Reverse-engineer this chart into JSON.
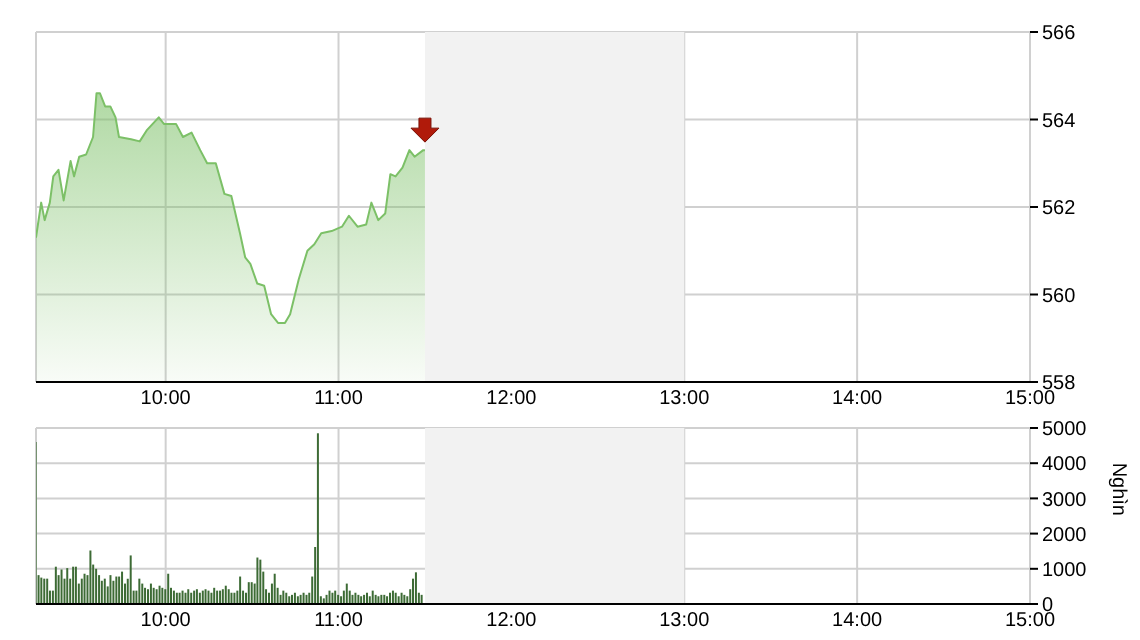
{
  "chart_data": [
    {
      "type": "area",
      "color": "#7cc067",
      "x": [
        9.25,
        9.28,
        9.3,
        9.33,
        9.35,
        9.38,
        9.41,
        9.45,
        9.47,
        9.5,
        9.54,
        9.58,
        9.6,
        9.62,
        9.65,
        9.68,
        9.71,
        9.73,
        9.8,
        9.85,
        9.89,
        9.96,
        9.99,
        10.06,
        10.1,
        10.15,
        10.2,
        10.24,
        10.29,
        10.34,
        10.38,
        10.43,
        10.46,
        10.49,
        10.53,
        10.57,
        10.61,
        10.65,
        10.69,
        10.72,
        10.77,
        10.82,
        10.86,
        10.9,
        10.96,
        11.02,
        11.06,
        11.11,
        11.16,
        11.19,
        11.23,
        11.27,
        11.3,
        11.33,
        11.37,
        11.41,
        11.44,
        11.49,
        11.5
      ],
      "values": [
        561.3,
        562.1,
        561.7,
        562.1,
        562.7,
        562.85,
        562.15,
        563.05,
        562.7,
        563.15,
        563.2,
        563.6,
        564.6,
        564.6,
        564.3,
        564.3,
        564.05,
        563.6,
        563.55,
        563.5,
        563.75,
        564.05,
        563.9,
        563.9,
        563.6,
        563.7,
        563.3,
        563.0,
        563.0,
        562.3,
        562.25,
        561.4,
        560.85,
        560.7,
        560.25,
        560.2,
        559.55,
        559.35,
        559.35,
        559.55,
        560.35,
        561.0,
        561.15,
        561.4,
        561.45,
        561.55,
        561.8,
        561.55,
        561.6,
        562.1,
        561.7,
        561.85,
        562.75,
        562.7,
        562.9,
        563.3,
        563.15,
        563.3,
        563.3
      ],
      "xlim": [
        9.25,
        15
      ],
      "xticks": [
        {
          "value": 10,
          "label": "10:00"
        },
        {
          "value": 11,
          "label": "11:00"
        },
        {
          "value": 12,
          "label": "12:00"
        },
        {
          "value": 13,
          "label": "13:00"
        },
        {
          "value": 14,
          "label": "14:00"
        },
        {
          "value": 15,
          "label": "15:00"
        }
      ],
      "ylim": [
        558,
        566
      ],
      "yticks": [
        558,
        560,
        562,
        564,
        566
      ],
      "grid": true,
      "bands": [
        {
          "axis": "x",
          "from": 11.5,
          "to": 13,
          "color": "#f2f2f2"
        }
      ]
    },
    {
      "type": "bar",
      "color": "#3d6b35",
      "ylabel": "Nghìn",
      "x": [
        9.25,
        9.267,
        9.283,
        9.3,
        9.317,
        9.333,
        9.35,
        9.367,
        9.383,
        9.4,
        9.417,
        9.433,
        9.45,
        9.467,
        9.483,
        9.5,
        9.517,
        9.533,
        9.55,
        9.567,
        9.583,
        9.6,
        9.617,
        9.633,
        9.65,
        9.667,
        9.683,
        9.7,
        9.717,
        9.733,
        9.75,
        9.767,
        9.783,
        9.8,
        9.817,
        9.833,
        9.85,
        9.867,
        9.883,
        9.9,
        9.917,
        9.933,
        9.95,
        9.967,
        9.983,
        10,
        10.017,
        10.033,
        10.05,
        10.067,
        10.083,
        10.1,
        10.117,
        10.133,
        10.15,
        10.167,
        10.183,
        10.2,
        10.217,
        10.233,
        10.25,
        10.267,
        10.283,
        10.3,
        10.317,
        10.333,
        10.35,
        10.367,
        10.383,
        10.4,
        10.417,
        10.433,
        10.45,
        10.467,
        10.483,
        10.5,
        10.517,
        10.533,
        10.55,
        10.567,
        10.583,
        10.6,
        10.617,
        10.633,
        10.65,
        10.667,
        10.683,
        10.7,
        10.717,
        10.733,
        10.75,
        10.767,
        10.783,
        10.8,
        10.817,
        10.833,
        10.85,
        10.867,
        10.883,
        10.9,
        10.917,
        10.933,
        10.95,
        10.967,
        10.983,
        11,
        11.017,
        11.033,
        11.05,
        11.067,
        11.083,
        11.1,
        11.117,
        11.133,
        11.15,
        11.167,
        11.183,
        11.2,
        11.217,
        11.233,
        11.25,
        11.267,
        11.283,
        11.3,
        11.317,
        11.333,
        11.35,
        11.367,
        11.383,
        11.4,
        11.417,
        11.433,
        11.45,
        11.467,
        11.483
      ],
      "values": [
        4600,
        820,
        750,
        720,
        720,
        380,
        380,
        1060,
        820,
        980,
        720,
        1020,
        720,
        1060,
        1060,
        580,
        720,
        860,
        820,
        1520,
        1120,
        1000,
        820,
        660,
        720,
        500,
        820,
        660,
        780,
        780,
        920,
        580,
        720,
        1380,
        380,
        380,
        720,
        580,
        460,
        420,
        580,
        460,
        420,
        520,
        460,
        420,
        860,
        460,
        380,
        320,
        320,
        380,
        320,
        420,
        320,
        380,
        420,
        320,
        380,
        420,
        380,
        320,
        460,
        380,
        380,
        420,
        520,
        420,
        320,
        320,
        380,
        780,
        380,
        320,
        620,
        620,
        580,
        1320,
        1260,
        920,
        420,
        320,
        580,
        860,
        460,
        260,
        380,
        320,
        220,
        260,
        320,
        220,
        260,
        320,
        260,
        320,
        780,
        1620,
        4850,
        220,
        160,
        260,
        380,
        320,
        380,
        260,
        220,
        380,
        580,
        380,
        260,
        320,
        260,
        220,
        260,
        320,
        220,
        380,
        260,
        220,
        260,
        260,
        220,
        320,
        380,
        320,
        220,
        320,
        260,
        220,
        420,
        720,
        900,
        320,
        260
      ],
      "xlim": [
        9.25,
        15
      ],
      "xticks": [
        {
          "value": 10,
          "label": "10:00"
        },
        {
          "value": 11,
          "label": "11:00"
        },
        {
          "value": 12,
          "label": "12:00"
        },
        {
          "value": 13,
          "label": "13:00"
        },
        {
          "value": 14,
          "label": "14:00"
        },
        {
          "value": 15,
          "label": "15:00"
        }
      ],
      "ylim": [
        0,
        5000
      ],
      "yticks": [
        0,
        1000,
        2000,
        3000,
        4000,
        5000
      ],
      "grid": true,
      "bands": [
        {
          "axis": "x",
          "from": 11.5,
          "to": 13,
          "color": "#f2f2f2"
        }
      ]
    }
  ]
}
